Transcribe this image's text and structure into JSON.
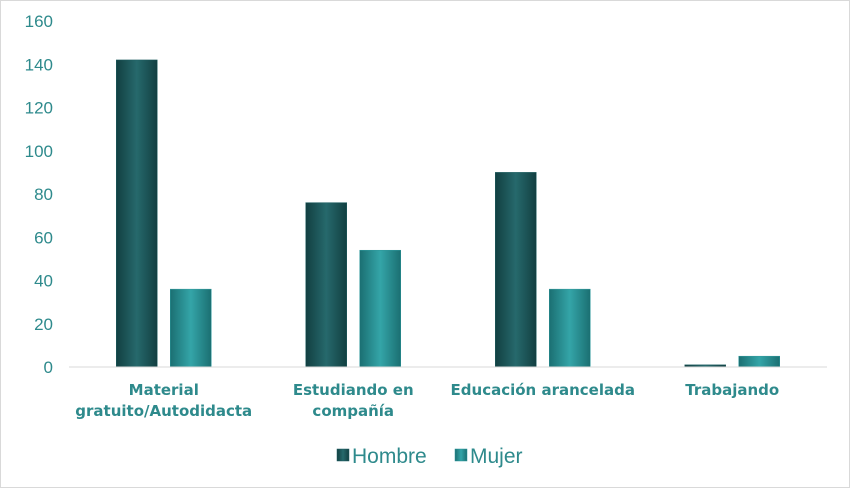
{
  "chart_data": {
    "type": "bar",
    "title": "",
    "xlabel": "",
    "ylabel": "",
    "categories": [
      [
        "Material",
        "gratuito/Autodidacta"
      ],
      [
        "Estudiando en",
        "compañía"
      ],
      [
        "Educación arancelada"
      ],
      [
        "Trabajando"
      ]
    ],
    "series": [
      {
        "name": "Hombre",
        "values": [
          142,
          76,
          90,
          1
        ],
        "color": "#1f5f62"
      },
      {
        "name": "Mujer",
        "values": [
          36,
          54,
          36,
          5
        ],
        "color": "#2a9699"
      }
    ],
    "ylim": [
      0,
      160
    ],
    "yticks": [
      0,
      20,
      40,
      60,
      80,
      100,
      120,
      140,
      160
    ],
    "grid": false,
    "legend_position": "bottom"
  }
}
